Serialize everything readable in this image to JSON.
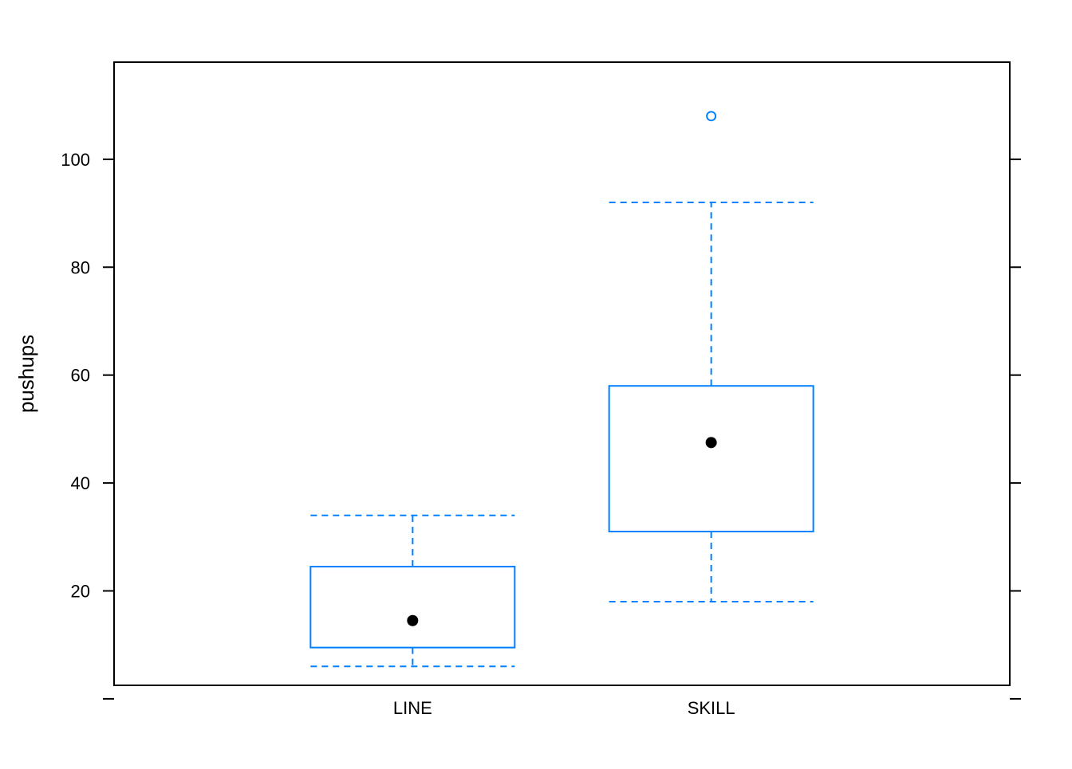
{
  "chart_data": {
    "type": "boxplot",
    "title": "",
    "xlabel": "",
    "ylabel": "pushups",
    "categories": [
      "LINE",
      "SKILL"
    ],
    "boxes": [
      {
        "category": "LINE",
        "whisker_low": 6,
        "q1": 9.5,
        "median": 14.5,
        "q3": 24.5,
        "whisker_high": 34,
        "outliers": []
      },
      {
        "category": "SKILL",
        "whisker_low": 18,
        "q1": 31,
        "median": 47.5,
        "q3": 58,
        "whisker_high": 92,
        "outliers": [
          108
        ]
      }
    ],
    "ylim": [
      2.5,
      118
    ],
    "yticks": [
      20,
      40,
      60,
      80,
      100
    ],
    "grid": false,
    "colors": {
      "box": "#0080ff",
      "median_dot": "#000000",
      "axis": "#000000"
    }
  }
}
